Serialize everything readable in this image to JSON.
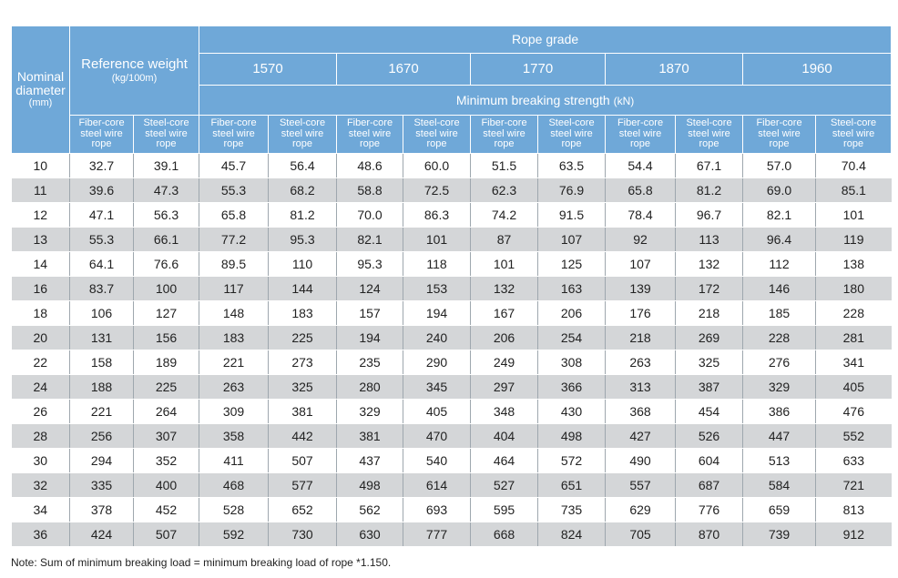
{
  "header": {
    "nominal_line1": "Nominal",
    "nominal_line2": "diameter",
    "nominal_unit": "(mm)",
    "reference_line1": "Reference weight",
    "reference_unit": "(kg/100m)",
    "rope_grade": "Rope grade",
    "grades": [
      "1570",
      "1670",
      "1770",
      "1870",
      "1960"
    ],
    "min_breaking": "Minimum breaking strength",
    "min_breaking_unit": "(kN)",
    "fiber_core": [
      "Fiber-core",
      "steel wire",
      "rope"
    ],
    "steel_core": [
      "Steel-core",
      "steel wire",
      "rope"
    ]
  },
  "rows": [
    [
      "10",
      "32.7",
      "39.1",
      "45.7",
      "56.4",
      "48.6",
      "60.0",
      "51.5",
      "63.5",
      "54.4",
      "67.1",
      "57.0",
      "70.4"
    ],
    [
      "11",
      "39.6",
      "47.3",
      "55.3",
      "68.2",
      "58.8",
      "72.5",
      "62.3",
      "76.9",
      "65.8",
      "81.2",
      "69.0",
      "85.1"
    ],
    [
      "12",
      "47.1",
      "56.3",
      "65.8",
      "81.2",
      "70.0",
      "86.3",
      "74.2",
      "91.5",
      "78.4",
      "96.7",
      "82.1",
      "101"
    ],
    [
      "13",
      "55.3",
      "66.1",
      "77.2",
      "95.3",
      "82.1",
      "101",
      "87",
      "107",
      "92",
      "113",
      "96.4",
      "119"
    ],
    [
      "14",
      "64.1",
      "76.6",
      "89.5",
      "110",
      "95.3",
      "118",
      "101",
      "125",
      "107",
      "132",
      "112",
      "138"
    ],
    [
      "16",
      "83.7",
      "100",
      "117",
      "144",
      "124",
      "153",
      "132",
      "163",
      "139",
      "172",
      "146",
      "180"
    ],
    [
      "18",
      "106",
      "127",
      "148",
      "183",
      "157",
      "194",
      "167",
      "206",
      "176",
      "218",
      "185",
      "228"
    ],
    [
      "20",
      "131",
      "156",
      "183",
      "225",
      "194",
      "240",
      "206",
      "254",
      "218",
      "269",
      "228",
      "281"
    ],
    [
      "22",
      "158",
      "189",
      "221",
      "273",
      "235",
      "290",
      "249",
      "308",
      "263",
      "325",
      "276",
      "341"
    ],
    [
      "24",
      "188",
      "225",
      "263",
      "325",
      "280",
      "345",
      "297",
      "366",
      "313",
      "387",
      "329",
      "405"
    ],
    [
      "26",
      "221",
      "264",
      "309",
      "381",
      "329",
      "405",
      "348",
      "430",
      "368",
      "454",
      "386",
      "476"
    ],
    [
      "28",
      "256",
      "307",
      "358",
      "442",
      "381",
      "470",
      "404",
      "498",
      "427",
      "526",
      "447",
      "552"
    ],
    [
      "30",
      "294",
      "352",
      "411",
      "507",
      "437",
      "540",
      "464",
      "572",
      "490",
      "604",
      "513",
      "633"
    ],
    [
      "32",
      "335",
      "400",
      "468",
      "577",
      "498",
      "614",
      "527",
      "651",
      "557",
      "687",
      "584",
      "721"
    ],
    [
      "34",
      "378",
      "452",
      "528",
      "652",
      "562",
      "693",
      "595",
      "735",
      "629",
      "776",
      "659",
      "813"
    ],
    [
      "36",
      "424",
      "507",
      "592",
      "730",
      "630",
      "777",
      "668",
      "824",
      "705",
      "870",
      "739",
      "912"
    ]
  ],
  "note": "Note: Sum of minimum breaking load = minimum breaking load of rope *1.150.",
  "colors": {
    "header_bg": "#6fa8d8",
    "stripe": "#d4d6d8",
    "divider": "#9ea7ae"
  }
}
